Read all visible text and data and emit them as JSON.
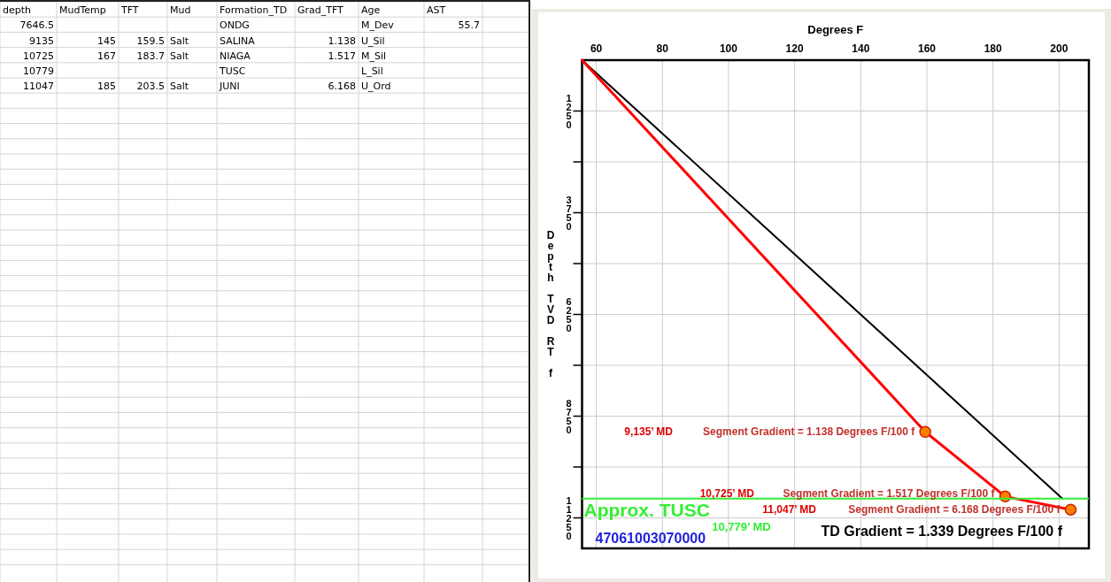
{
  "chart_data": [
    {
      "type": "other",
      "categories": [
        "depth",
        "MudTemp",
        "TFT",
        "Mud",
        "Formation_TD",
        "Grad_TFT",
        "Age",
        "AST"
      ],
      "cell_labels": [
        [
          "7646.5",
          null,
          null,
          null,
          "ONDG",
          null,
          "M_Dev",
          "55.7"
        ],
        [
          "9135",
          "145",
          "159.5",
          "Salt",
          "SALINA",
          "1.138",
          "U_Sil",
          null
        ],
        [
          "10725",
          "167",
          "183.7",
          "Salt",
          "NIAGA",
          "1.517",
          "M_Sil",
          null
        ],
        [
          "10779",
          null,
          null,
          null,
          "TUSC",
          null,
          "L_Sil",
          null
        ],
        [
          "11047",
          "185",
          "203.5",
          "Salt",
          "JUNI",
          "6.168",
          "U_Ord",
          null
        ]
      ]
    },
    {
      "type": "line",
      "xlabel": "Degrees F",
      "ylabel": "Depth TVD RT f",
      "xlim": [
        55.7,
        209
      ],
      "xticks": [
        60,
        80,
        100,
        120,
        140,
        160,
        180,
        200
      ],
      "ylim": [
        12000,
        0
      ],
      "yticks": [
        {
          "value": 1250,
          "label": "1250"
        },
        {
          "value": 2500,
          "label": null
        },
        {
          "value": 3750,
          "label": "3750"
        },
        {
          "value": 5000,
          "label": null
        },
        {
          "value": 6250,
          "label": "6250"
        },
        {
          "value": 7500,
          "label": null
        },
        {
          "value": 8750,
          "label": "8750"
        },
        {
          "value": 10000,
          "label": null
        },
        {
          "value": 11250,
          "label": "11250"
        }
      ],
      "grid": true,
      "series": [
        {
          "color": "#000000",
          "x": [
            55.7,
            201
          ],
          "values": [
            0,
            10779
          ]
        },
        {
          "color": "#ff0000",
          "x": [
            55.7,
            159.5,
            183.7,
            203.5
          ],
          "values": [
            0,
            9135,
            10725,
            11047
          ]
        },
        {
          "type": "scatter",
          "color": "#ff8000",
          "x": [
            159.5,
            183.7,
            203.5
          ],
          "values": [
            9135,
            10725,
            11047
          ],
          "marker": "circle"
        }
      ],
      "ref_lines": [
        {
          "axis": "y",
          "value": 10779,
          "label": "Approx. TUSC",
          "color": "#33ee33"
        }
      ],
      "annotations": [
        "9,135’ MD",
        {
          "text": "Segment Gradient = 1.138 Degrees F/100 f",
          "x": 159.5,
          "y": 9135
        },
        "10,725’ MD",
        {
          "text": "Segment Gradient = 1.517 Degrees F/100 f",
          "x": 183.7,
          "y": 10725
        },
        "11,047’ MD",
        {
          "text": "Segment Gradient = 6.168 Degrees F/100 f",
          "x": 203.5,
          "y": 11047
        },
        {
          "text": "10,779’ MD",
          "y": 10779
        },
        "TD Gradient = 1.339 Degrees F/100 f",
        "47061003070000"
      ]
    }
  ]
}
